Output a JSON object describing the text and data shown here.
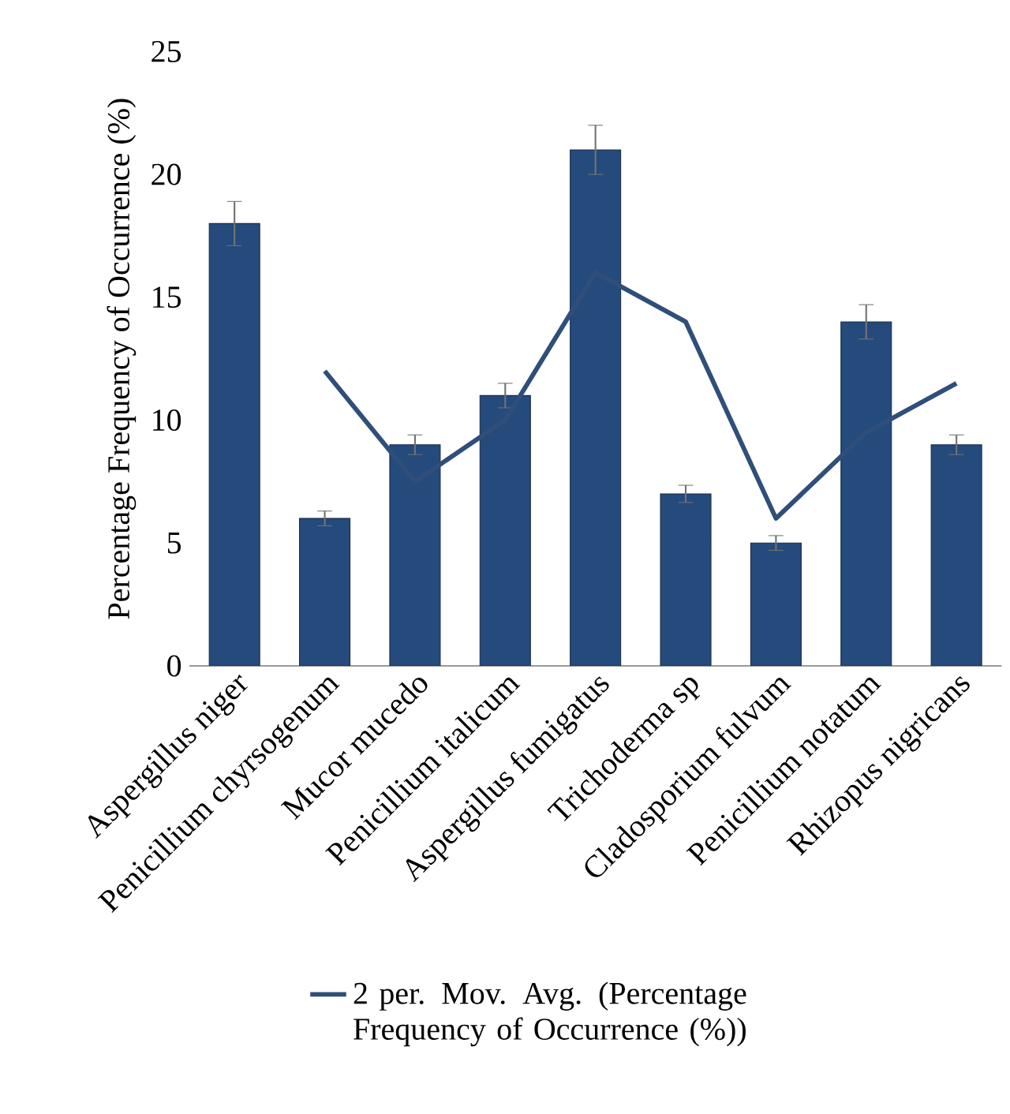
{
  "chart_data": {
    "type": "bar",
    "ylabel": "Percentage Frequency of Occurrence (%)",
    "categories": [
      "Aspergillus niger",
      "Penicillium chyrsogenum",
      "Mucor mucedo",
      "Penicillium italicum",
      "Aspergillus fumigatus",
      "Trichoderma sp",
      "Cladosporium fulvum",
      "Penicillium notatum",
      "Rhizopus nigricans"
    ],
    "series": [
      {
        "color": "#254a7c",
        "values": [
          18,
          6,
          9,
          11,
          21,
          7,
          5,
          14,
          9
        ],
        "errors": [
          0.9,
          0.3,
          0.4,
          0.5,
          1.0,
          0.35,
          0.3,
          0.7,
          0.4
        ]
      },
      {
        "type": "line",
        "name": "2 per. Mov. Avg. (Percentage Frequency of Occurrence (%))",
        "color": "#2f4f7a",
        "values": [
          null,
          12,
          7.5,
          10,
          16,
          14,
          6,
          9.5,
          11.5
        ]
      }
    ],
    "ylim": [
      0,
      25
    ],
    "yticks": [
      0,
      5,
      10,
      15,
      20,
      25
    ],
    "legend": "bottom",
    "grid": false
  }
}
